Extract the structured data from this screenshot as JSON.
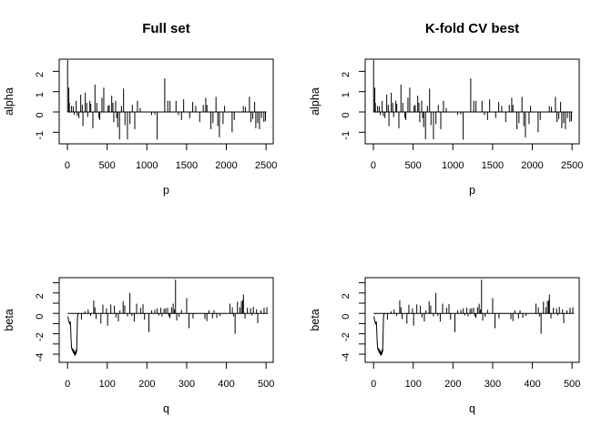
{
  "figure": {
    "background": "#ffffff",
    "line_color": "#000000",
    "columns": [
      {
        "title": "Full set"
      },
      {
        "title": "K-fold CV best"
      }
    ]
  },
  "chart_data": {
    "type": "line",
    "layout": "2x2 grid; left and right columns show identical data; no legend; no gridlines; black spikes on white, R-style box axes",
    "column_titles": [
      "Full set",
      "K-fold CV best"
    ],
    "rows": [
      {
        "ylabel": "alpha",
        "xlabel": "p",
        "xlim": [
          -103,
          2590
        ],
        "ylim": [
          -1.57,
          2.6
        ],
        "xticks": [
          0,
          500,
          1000,
          1500,
          2000,
          2500
        ],
        "xtick_labels": [
          "0",
          "500",
          "1000",
          "1500",
          "2000",
          "2500"
        ],
        "yticks": [
          -1,
          0,
          1,
          2
        ],
        "ytick_labels": [
          "-1",
          "0",
          "1",
          "2"
        ],
        "baseline": 0,
        "baseline_x": [
          0,
          2505
        ],
        "spikes": [
          [
            3,
            2.55
          ],
          [
            18,
            1.2
          ],
          [
            25,
            0.45
          ],
          [
            53,
            0.3
          ],
          [
            76,
            0.28
          ],
          [
            88,
            -0.15
          ],
          [
            111,
            0.55
          ],
          [
            125,
            -0.2
          ],
          [
            145,
            -0.3
          ],
          [
            168,
            0.85
          ],
          [
            187,
            0.35
          ],
          [
            196,
            -0.7
          ],
          [
            225,
            0.95
          ],
          [
            243,
            0.45
          ],
          [
            255,
            -0.25
          ],
          [
            283,
            0.55
          ],
          [
            294,
            0.4
          ],
          [
            321,
            -0.8
          ],
          [
            347,
            1.35
          ],
          [
            370,
            0.45
          ],
          [
            397,
            -0.3
          ],
          [
            408,
            -0.4
          ],
          [
            435,
            0.7
          ],
          [
            458,
            1.2
          ],
          [
            512,
            0.3
          ],
          [
            527,
            0.35
          ],
          [
            558,
            0.8
          ],
          [
            573,
            0.45
          ],
          [
            584,
            -0.5
          ],
          [
            607,
            0.55
          ],
          [
            620,
            -0.3
          ],
          [
            633,
            -0.75
          ],
          [
            656,
            -1.35
          ],
          [
            680,
            0.3
          ],
          [
            707,
            1.15
          ],
          [
            725,
            -0.65
          ],
          [
            756,
            -1.35
          ],
          [
            787,
            -0.6
          ],
          [
            817,
            0.35
          ],
          [
            848,
            -0.85
          ],
          [
            882,
            0.55
          ],
          [
            917,
            0.2
          ],
          [
            1060,
            -0.15
          ],
          [
            1100,
            -0.12
          ],
          [
            1130,
            -1.36
          ],
          [
            1225,
            1.65
          ],
          [
            1263,
            0.55
          ],
          [
            1291,
            0.55
          ],
          [
            1367,
            0.55
          ],
          [
            1398,
            -0.15
          ],
          [
            1436,
            -0.4
          ],
          [
            1463,
            0.62
          ],
          [
            1539,
            -0.3
          ],
          [
            1577,
            0.5
          ],
          [
            1615,
            0.3
          ],
          [
            1665,
            -0.5
          ],
          [
            1710,
            0.35
          ],
          [
            1741,
            0.7
          ],
          [
            1756,
            0.35
          ],
          [
            1806,
            -0.85
          ],
          [
            1832,
            -0.55
          ],
          [
            1870,
            0.75
          ],
          [
            1893,
            -0.7
          ],
          [
            1913,
            -1.25
          ],
          [
            1959,
            -0.6
          ],
          [
            1978,
            0.3
          ],
          [
            2073,
            -1.0
          ],
          [
            2100,
            -0.4
          ],
          [
            2214,
            0.3
          ],
          [
            2241,
            0.25
          ],
          [
            2291,
            0.75
          ],
          [
            2310,
            -0.5
          ],
          [
            2333,
            -0.35
          ],
          [
            2356,
            0.5
          ],
          [
            2371,
            -0.8
          ],
          [
            2394,
            -0.55
          ],
          [
            2417,
            -0.85
          ],
          [
            2443,
            -0.3
          ],
          [
            2473,
            -0.5
          ],
          [
            2493,
            -0.45
          ]
        ]
      },
      {
        "ylabel": "beta",
        "xlabel": "q",
        "xlim": [
          -21,
          518
        ],
        "ylim": [
          -4.8,
          3.5
        ],
        "xticks": [
          0,
          100,
          200,
          300,
          400,
          500
        ],
        "xtick_labels": [
          "0",
          "100",
          "200",
          "300",
          "400",
          "500"
        ],
        "yticks": [
          -4,
          -3,
          -2,
          -1,
          0,
          1,
          2,
          3
        ],
        "ytick_labels": [
          "-4",
          "",
          "-2",
          "",
          "0",
          "",
          "2",
          ""
        ],
        "baseline": 0,
        "baseline_x": [
          0,
          505
        ],
        "curve": [
          [
            1,
            -0.3
          ],
          [
            3,
            -0.75
          ],
          [
            5,
            -1.0
          ],
          [
            7,
            -0.8
          ],
          [
            8,
            -1.5
          ],
          [
            9,
            -2.6
          ],
          [
            10,
            -3.3
          ],
          [
            11,
            -3.55
          ],
          [
            12,
            -3.4
          ],
          [
            13,
            -3.75
          ],
          [
            14,
            -3.5
          ],
          [
            15,
            -3.9
          ],
          [
            16,
            -3.6
          ],
          [
            17,
            -4.05
          ],
          [
            18,
            -3.7
          ],
          [
            19,
            -4.15
          ],
          [
            20,
            -3.8
          ],
          [
            21,
            -4.0
          ],
          [
            22,
            -3.5
          ],
          [
            23,
            -3.8
          ],
          [
            24,
            -2.2
          ],
          [
            25,
            -0.4
          ],
          [
            26,
            -0.1
          ],
          [
            28,
            0
          ]
        ],
        "spikes": [
          [
            35,
            -0.62
          ],
          [
            44,
            0.2
          ],
          [
            52,
            0.38
          ],
          [
            58,
            -0.25
          ],
          [
            66,
            1.27
          ],
          [
            69,
            0.6
          ],
          [
            72,
            -0.55
          ],
          [
            84,
            -1.0
          ],
          [
            89,
            0.85
          ],
          [
            98,
            0.5
          ],
          [
            101,
            -1.2
          ],
          [
            109,
            0.88
          ],
          [
            118,
            0.75
          ],
          [
            122,
            -0.4
          ],
          [
            128,
            -0.78
          ],
          [
            132,
            0.3
          ],
          [
            140,
            1.2
          ],
          [
            144,
            0.78
          ],
          [
            151,
            -0.3
          ],
          [
            157,
            2.0
          ],
          [
            162,
            -0.25
          ],
          [
            168,
            -0.8
          ],
          [
            174,
            0.95
          ],
          [
            184,
            0.55
          ],
          [
            190,
            0.9
          ],
          [
            194,
            -0.62
          ],
          [
            205,
            -1.84
          ],
          [
            212,
            0.3
          ],
          [
            220,
            0.35
          ],
          [
            226,
            0.5
          ],
          [
            230,
            -0.2
          ],
          [
            235,
            0.55
          ],
          [
            238,
            -0.3
          ],
          [
            243,
            0.45
          ],
          [
            247,
            0.5
          ],
          [
            252,
            0.55
          ],
          [
            255,
            -0.3
          ],
          [
            258,
            -0.45
          ],
          [
            262,
            0.6
          ],
          [
            266,
            0.95
          ],
          [
            269,
            0.4
          ],
          [
            272,
            3.3
          ],
          [
            275,
            -0.7
          ],
          [
            281,
            -0.35
          ],
          [
            287,
            0.35
          ],
          [
            300,
            1.5
          ],
          [
            306,
            -1.45
          ],
          [
            316,
            -0.5
          ],
          [
            346,
            -0.55
          ],
          [
            351,
            -0.75
          ],
          [
            356,
            0.3
          ],
          [
            365,
            -0.5
          ],
          [
            369,
            0.3
          ],
          [
            376,
            -0.45
          ],
          [
            384,
            -0.25
          ],
          [
            409,
            0.95
          ],
          [
            415,
            0.6
          ],
          [
            418,
            -0.3
          ],
          [
            422,
            -2.0
          ],
          [
            428,
            1.15
          ],
          [
            434,
            0.6
          ],
          [
            438,
            1.2
          ],
          [
            441,
            1.3
          ],
          [
            443,
            1.85
          ],
          [
            447,
            -0.5
          ],
          [
            453,
            0.55
          ],
          [
            461,
            0.5
          ],
          [
            464,
            -0.2
          ],
          [
            468,
            0.65
          ],
          [
            476,
            0.4
          ],
          [
            479,
            -0.95
          ],
          [
            487,
            0.3
          ],
          [
            495,
            0.55
          ],
          [
            502,
            0.6
          ]
        ]
      }
    ]
  }
}
